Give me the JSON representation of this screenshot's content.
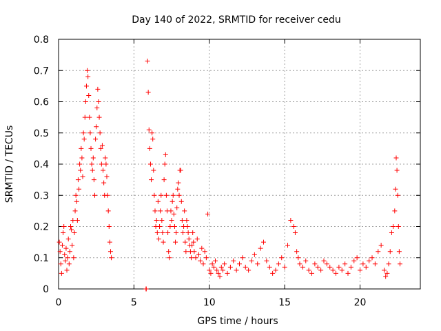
{
  "chart_data": {
    "type": "scatter",
    "title": "Day 140 of 2022, SRMTID for receiver cedu",
    "xlabel": "GPS time / hours",
    "ylabel": "SRMTID / TECUs",
    "xlim": [
      0,
      24
    ],
    "ylim": [
      0,
      0.8
    ],
    "xticks": [
      0,
      5,
      10,
      15,
      20
    ],
    "xtick_labels": [
      "0",
      "5",
      "10",
      "15",
      "20"
    ],
    "yticks": [
      0,
      0.1,
      0.2,
      0.3,
      0.4,
      0.5,
      0.6,
      0.7,
      0.8
    ],
    "ytick_labels": [
      "0",
      "0.1",
      "0.2",
      "0.3",
      "0.4",
      "0.5",
      "0.6",
      "0.7",
      "0.8"
    ],
    "grid": true,
    "marker": "+",
    "color": "#ff0000",
    "series": [
      {
        "name": "SRMTID",
        "x": [
          0.05,
          0.1,
          0.15,
          0.2,
          0.25,
          0.3,
          0.35,
          0.4,
          0.45,
          0.5,
          0.55,
          0.6,
          0.65,
          0.7,
          0.75,
          0.8,
          0.85,
          0.9,
          0.95,
          1.0,
          1.05,
          1.1,
          1.15,
          1.2,
          1.25,
          1.3,
          1.35,
          1.4,
          1.45,
          1.5,
          1.55,
          1.6,
          1.65,
          1.7,
          1.75,
          1.8,
          1.85,
          1.9,
          1.95,
          2.0,
          2.05,
          2.1,
          2.15,
          2.2,
          2.25,
          2.3,
          2.35,
          2.4,
          2.45,
          2.5,
          2.55,
          2.6,
          2.65,
          2.7,
          2.75,
          2.8,
          2.85,
          2.9,
          2.95,
          3.0,
          3.05,
          3.1,
          3.15,
          3.2,
          3.25,
          3.3,
          3.35,
          3.4,
          3.45,
          3.5,
          5.8,
          5.82,
          5.9,
          5.95,
          6.0,
          6.05,
          6.1,
          6.15,
          6.2,
          6.25,
          6.3,
          6.35,
          6.4,
          6.45,
          6.5,
          6.55,
          6.6,
          6.65,
          6.7,
          6.75,
          6.8,
          6.85,
          6.9,
          6.95,
          7.0,
          7.05,
          7.1,
          7.15,
          7.2,
          7.25,
          7.3,
          7.35,
          7.4,
          7.45,
          7.5,
          7.55,
          7.6,
          7.65,
          7.7,
          7.75,
          7.8,
          7.85,
          7.9,
          7.95,
          8.0,
          8.05,
          8.1,
          8.15,
          8.2,
          8.25,
          8.3,
          8.35,
          8.4,
          8.45,
          8.5,
          8.55,
          8.6,
          8.65,
          8.7,
          8.75,
          8.8,
          8.85,
          8.9,
          8.95,
          9.0,
          9.1,
          9.2,
          9.3,
          9.4,
          9.5,
          9.6,
          9.7,
          9.8,
          9.9,
          10.0,
          10.1,
          10.2,
          10.3,
          10.4,
          10.5,
          10.6,
          10.7,
          10.8,
          10.9,
          11.0,
          11.2,
          11.4,
          11.6,
          11.8,
          12.0,
          12.2,
          12.4,
          12.6,
          12.8,
          13.0,
          13.2,
          13.4,
          13.6,
          13.8,
          14.0,
          14.2,
          14.4,
          14.6,
          14.8,
          15.0,
          15.2,
          15.4,
          15.6,
          15.7,
          15.8,
          15.9,
          16.0,
          16.2,
          16.4,
          16.6,
          16.8,
          17.0,
          17.2,
          17.4,
          17.6,
          17.8,
          18.0,
          18.2,
          18.4,
          18.6,
          18.8,
          19.0,
          19.2,
          19.4,
          19.6,
          19.8,
          20.0,
          20.2,
          20.4,
          20.6,
          20.8,
          21.0,
          21.2,
          21.4,
          21.6,
          21.7,
          21.8,
          21.9,
          22.0,
          22.1,
          22.2,
          22.3,
          22.35,
          22.4,
          22.45,
          22.5,
          22.55,
          22.6,
          22.65
        ],
        "y": [
          0.15,
          0.12,
          0.08,
          0.05,
          0.14,
          0.18,
          0.2,
          0.11,
          0.09,
          0.13,
          0.06,
          0.1,
          0.16,
          0.08,
          0.12,
          0.2,
          0.19,
          0.14,
          0.22,
          0.1,
          0.18,
          0.25,
          0.3,
          0.28,
          0.22,
          0.35,
          0.32,
          0.4,
          0.38,
          0.45,
          0.42,
          0.36,
          0.5,
          0.48,
          0.55,
          0.6,
          0.65,
          0.7,
          0.68,
          0.62,
          0.55,
          0.5,
          0.45,
          0.4,
          0.38,
          0.42,
          0.35,
          0.3,
          0.48,
          0.52,
          0.58,
          0.64,
          0.6,
          0.55,
          0.5,
          0.45,
          0.4,
          0.46,
          0.38,
          0.34,
          0.3,
          0.42,
          0.4,
          0.36,
          0.3,
          0.25,
          0.2,
          0.15,
          0.12,
          0.1,
          0.0,
          0.0,
          0.73,
          0.63,
          0.51,
          0.45,
          0.4,
          0.35,
          0.5,
          0.48,
          0.38,
          0.3,
          0.25,
          0.2,
          0.22,
          0.18,
          0.28,
          0.16,
          0.2,
          0.25,
          0.3,
          0.22,
          0.18,
          0.15,
          0.35,
          0.4,
          0.43,
          0.3,
          0.25,
          0.18,
          0.12,
          0.1,
          0.2,
          0.25,
          0.22,
          0.28,
          0.3,
          0.24,
          0.2,
          0.15,
          0.18,
          0.26,
          0.32,
          0.34,
          0.3,
          0.38,
          0.38,
          0.28,
          0.22,
          0.18,
          0.2,
          0.25,
          0.15,
          0.12,
          0.22,
          0.2,
          0.18,
          0.16,
          0.14,
          0.12,
          0.1,
          0.14,
          0.18,
          0.15,
          0.12,
          0.1,
          0.16,
          0.11,
          0.09,
          0.13,
          0.08,
          0.12,
          0.1,
          0.24,
          0.06,
          0.05,
          0.08,
          0.07,
          0.09,
          0.06,
          0.05,
          0.04,
          0.07,
          0.06,
          0.08,
          0.05,
          0.07,
          0.09,
          0.06,
          0.08,
          0.1,
          0.07,
          0.06,
          0.09,
          0.11,
          0.08,
          0.13,
          0.15,
          0.09,
          0.07,
          0.05,
          0.06,
          0.08,
          0.1,
          0.07,
          0.14,
          0.22,
          0.2,
          0.18,
          0.12,
          0.1,
          0.08,
          0.07,
          0.09,
          0.06,
          0.05,
          0.08,
          0.07,
          0.06,
          0.09,
          0.08,
          0.07,
          0.06,
          0.05,
          0.07,
          0.06,
          0.08,
          0.05,
          0.07,
          0.09,
          0.1,
          0.06,
          0.08,
          0.07,
          0.09,
          0.1,
          0.08,
          0.12,
          0.14,
          0.06,
          0.04,
          0.05,
          0.08,
          0.12,
          0.18,
          0.2,
          0.25,
          0.32,
          0.42,
          0.38,
          0.3,
          0.2,
          0.12,
          0.08
        ]
      }
    ]
  }
}
